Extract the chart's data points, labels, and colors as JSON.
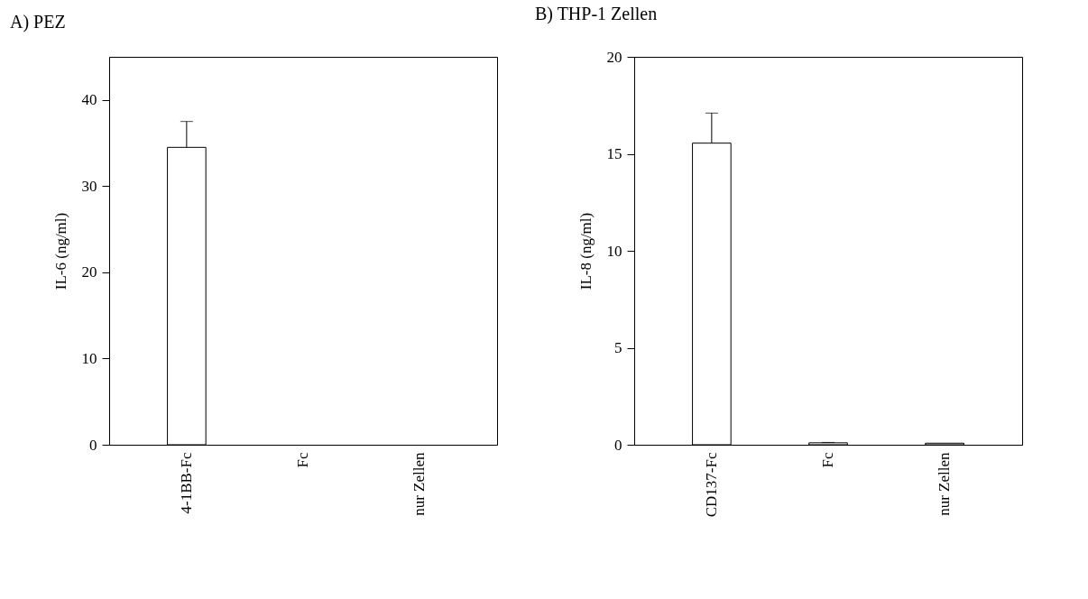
{
  "chart_data": [
    {
      "type": "bar",
      "title": "A) PEZ",
      "ylabel": "IL-6 (ng/ml)",
      "categories": [
        "4-1BB-Fc",
        "Fc",
        "nur Zellen"
      ],
      "values": [
        34.5,
        null,
        null
      ],
      "errors": [
        3.0,
        null,
        null
      ],
      "color": "#ffffff",
      "ylim": [
        0,
        45
      ],
      "yticks": [
        0,
        10,
        20,
        30,
        40
      ],
      "grid": false
    },
    {
      "type": "bar",
      "title": "B) THP-1 Zellen",
      "ylabel": "IL-8 (ng/ml)",
      "categories": [
        "CD137-Fc",
        "Fc",
        "nur Zellen"
      ],
      "values": [
        15.55,
        0.1,
        0.08
      ],
      "errors": [
        1.55,
        0.02,
        null
      ],
      "color": "#ffffff",
      "ylim": [
        0,
        20
      ],
      "yticks": [
        0,
        5,
        10,
        15,
        20
      ],
      "grid": false
    }
  ]
}
